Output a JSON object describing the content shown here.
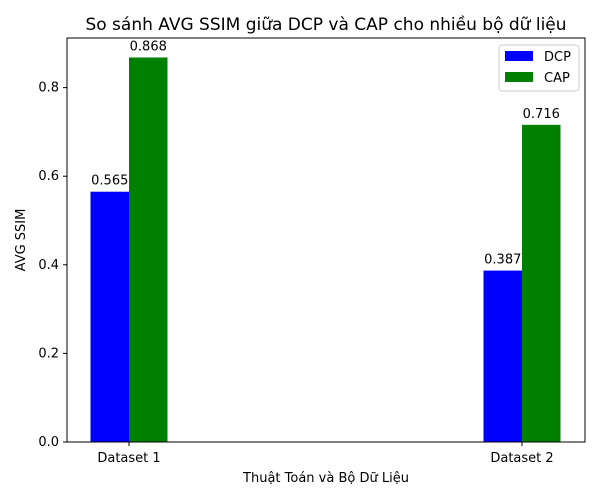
{
  "chart_data": {
    "type": "bar",
    "title": "So sánh AVG SSIM giữa DCP và CAP cho nhiều bộ dữ liệu",
    "xlabel": "Thuật Toán và Bộ Dữ Liệu",
    "ylabel": "AVG SSIM",
    "categories": [
      "Dataset 1",
      "Dataset 2"
    ],
    "ylim": [
      0,
      0.912
    ],
    "yticks": [
      0.0,
      0.2,
      0.4,
      0.6,
      0.8
    ],
    "ytick_labels": [
      "0.0",
      "0.2",
      "0.4",
      "0.6",
      "0.8"
    ],
    "grid": false,
    "legend_position": "top-right",
    "series": [
      {
        "name": "DCP",
        "color": "#0000ff",
        "values": [
          0.565,
          0.387
        ],
        "labels": [
          "0.565",
          "0.387"
        ]
      },
      {
        "name": "CAP",
        "color": "#008000",
        "values": [
          0.868,
          0.716
        ],
        "labels": [
          "0.868",
          "0.716"
        ]
      }
    ]
  }
}
